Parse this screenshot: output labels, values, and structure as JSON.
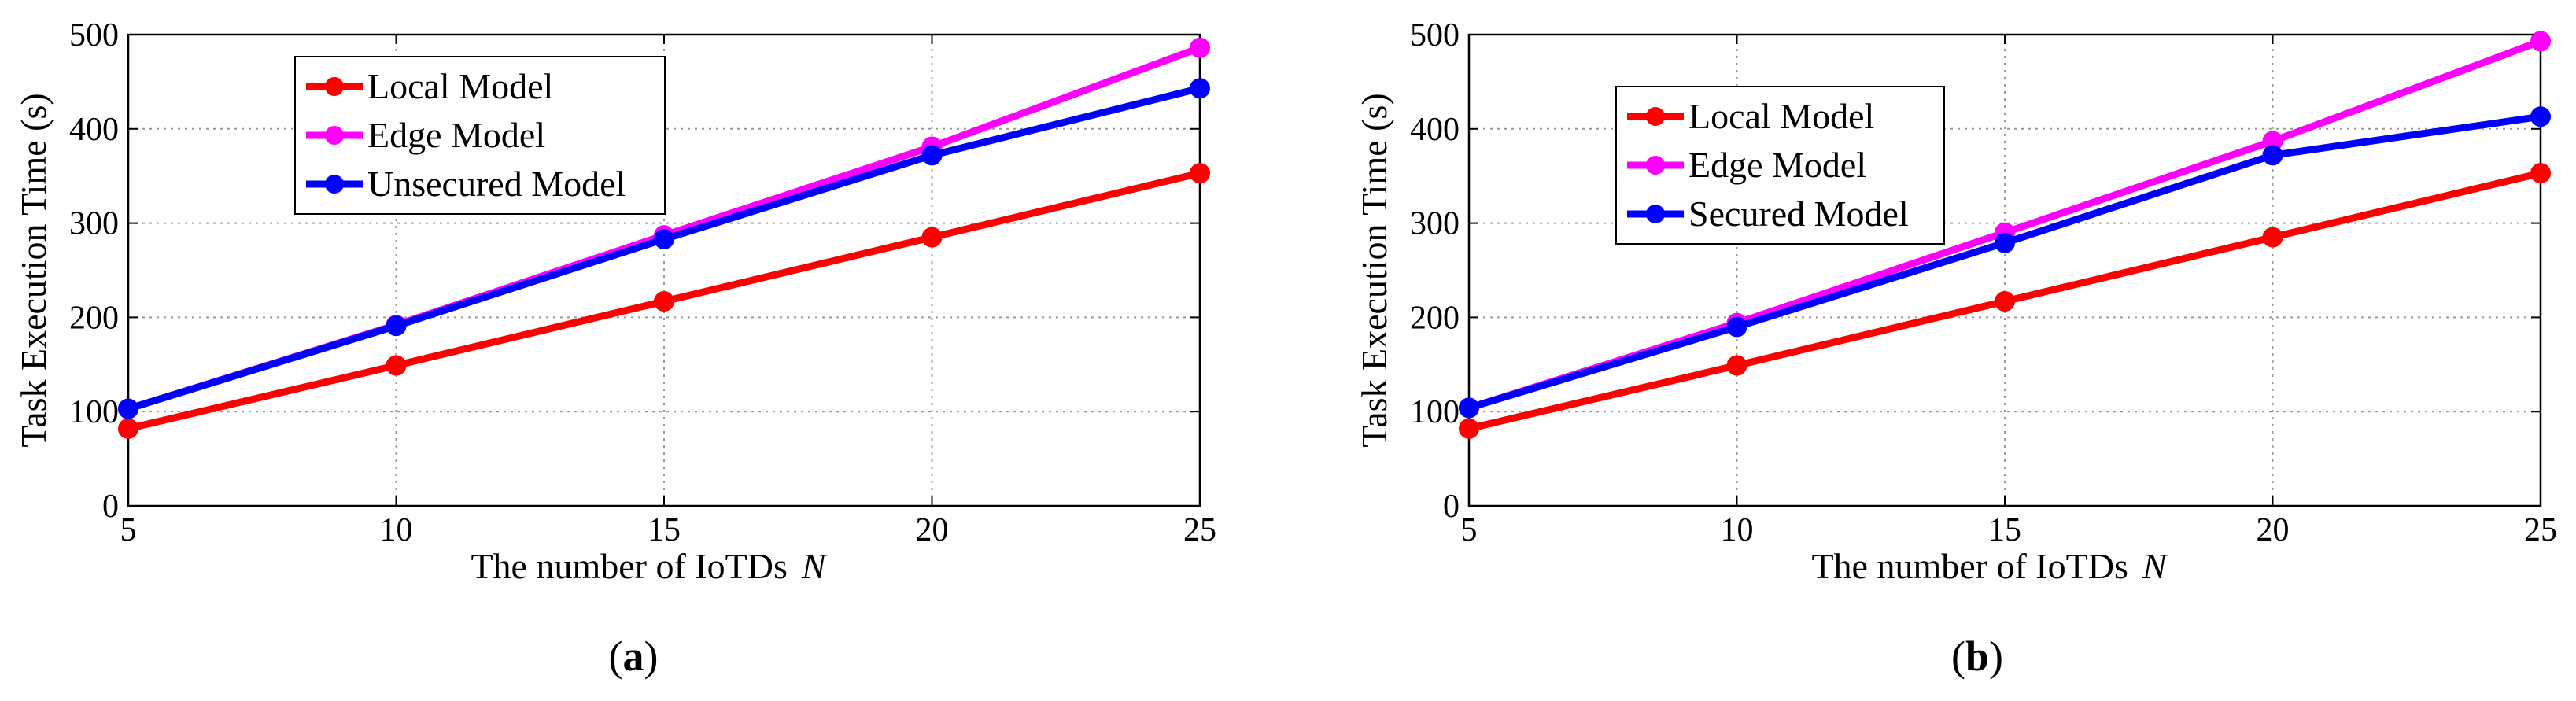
{
  "chart_data": [
    {
      "type": "line",
      "panel": "a",
      "caption_letter": "a",
      "xlabel": "The number of IoTDs",
      "xlabel_var": "N",
      "ylabel": "Task Execution Time (s)",
      "x": [
        5,
        10,
        15,
        20,
        25
      ],
      "xlim": [
        5,
        25
      ],
      "ylim": [
        0,
        500
      ],
      "xticks": [
        "5",
        "10",
        "15",
        "20",
        "25"
      ],
      "yticks": [
        "0",
        "100",
        "200",
        "300",
        "400",
        "500"
      ],
      "grid": true,
      "legend_position": "top-left",
      "series": [
        {
          "name": "Local Model",
          "color": "#ff0000",
          "values": [
            82,
            149,
            217,
            285,
            353
          ]
        },
        {
          "name": "Edge Model",
          "color": "#ff00ff",
          "values": [
            103,
            192,
            287,
            381,
            486
          ]
        },
        {
          "name": "Unsecured Model",
          "color": "#0000ff",
          "values": [
            103,
            191,
            283,
            372,
            443
          ]
        }
      ]
    },
    {
      "type": "line",
      "panel": "b",
      "caption_letter": "b",
      "xlabel": "The number of IoTDs",
      "xlabel_var": "N",
      "ylabel": "Task Execution Time (s)",
      "x": [
        5,
        10,
        15,
        20,
        25
      ],
      "xlim": [
        5,
        25
      ],
      "ylim": [
        0,
        500
      ],
      "xticks": [
        "5",
        "10",
        "15",
        "20",
        "25"
      ],
      "yticks": [
        "0",
        "100",
        "200",
        "300",
        "400",
        "500"
      ],
      "grid": true,
      "legend_position": "top-left",
      "series": [
        {
          "name": "Local Model",
          "color": "#ff0000",
          "values": [
            82,
            149,
            217,
            285,
            353
          ]
        },
        {
          "name": "Edge Model",
          "color": "#ff00ff",
          "values": [
            104,
            194,
            290,
            387,
            493
          ]
        },
        {
          "name": "Secured Model",
          "color": "#0000ff",
          "values": [
            104,
            190,
            279,
            372,
            413
          ]
        }
      ]
    }
  ]
}
